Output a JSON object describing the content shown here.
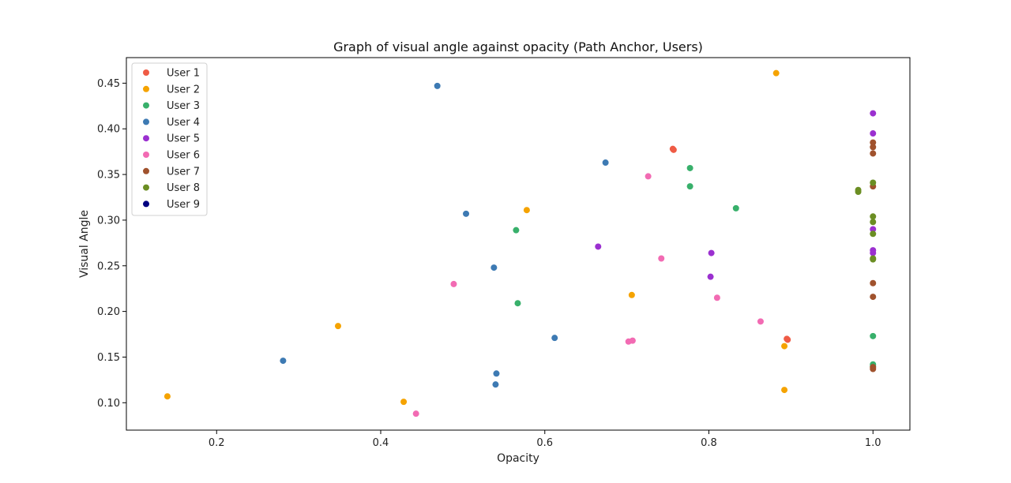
{
  "chart_data": {
    "type": "scatter",
    "title": "Graph of visual angle against opacity (Path Anchor, Users)",
    "xlabel": "Opacity",
    "ylabel": "Visual Angle",
    "xlim": [
      0.09,
      1.045
    ],
    "ylim": [
      0.07,
      0.478
    ],
    "xticks": [
      0.2,
      0.4,
      0.6,
      0.8,
      1.0
    ],
    "xtick_labels": [
      "0.2",
      "0.4",
      "0.6",
      "0.8",
      "1.0"
    ],
    "yticks": [
      0.1,
      0.15,
      0.2,
      0.25,
      0.3,
      0.35,
      0.4,
      0.45
    ],
    "ytick_labels": [
      "0.10",
      "0.15",
      "0.20",
      "0.25",
      "0.30",
      "0.35",
      "0.40",
      "0.45"
    ],
    "grid": false,
    "legend_position": "top-left",
    "series": [
      {
        "name": "User 1",
        "color": "#ef5b45",
        "points": [
          [
            0.756,
            0.378
          ],
          [
            0.757,
            0.377
          ],
          [
            0.895,
            0.17
          ],
          [
            0.896,
            0.169
          ]
        ]
      },
      {
        "name": "User 2",
        "color": "#f5a300",
        "points": [
          [
            0.882,
            0.461
          ],
          [
            0.578,
            0.311
          ],
          [
            0.706,
            0.218
          ],
          [
            0.348,
            0.184
          ],
          [
            0.892,
            0.162
          ],
          [
            0.14,
            0.107
          ],
          [
            0.428,
            0.101
          ],
          [
            0.892,
            0.114
          ]
        ]
      },
      {
        "name": "User 3",
        "color": "#38b06b",
        "points": [
          [
            0.777,
            0.357
          ],
          [
            0.777,
            0.337
          ],
          [
            0.833,
            0.313
          ],
          [
            0.565,
            0.289
          ],
          [
            0.567,
            0.209
          ],
          [
            1.0,
            0.173
          ],
          [
            1.0,
            0.142
          ],
          [
            1.0,
            0.14
          ]
        ]
      },
      {
        "name": "User 4",
        "color": "#3d7ab3",
        "points": [
          [
            0.469,
            0.447
          ],
          [
            0.674,
            0.363
          ],
          [
            0.504,
            0.307
          ],
          [
            0.538,
            0.248
          ],
          [
            0.612,
            0.171
          ],
          [
            0.281,
            0.146
          ],
          [
            0.541,
            0.132
          ],
          [
            0.54,
            0.12
          ]
        ]
      },
      {
        "name": "User 5",
        "color": "#9b30d0",
        "points": [
          [
            1.0,
            0.417
          ],
          [
            1.0,
            0.395
          ],
          [
            1.0,
            0.29
          ],
          [
            0.665,
            0.271
          ],
          [
            0.803,
            0.264
          ],
          [
            1.0,
            0.267
          ],
          [
            1.0,
            0.264
          ],
          [
            0.802,
            0.238
          ]
        ]
      },
      {
        "name": "User 6",
        "color": "#f26bb3",
        "points": [
          [
            0.726,
            0.348
          ],
          [
            0.742,
            0.258
          ],
          [
            0.489,
            0.23
          ],
          [
            0.81,
            0.215
          ],
          [
            0.863,
            0.189
          ],
          [
            0.702,
            0.167
          ],
          [
            0.707,
            0.168
          ],
          [
            0.443,
            0.088
          ]
        ]
      },
      {
        "name": "User 7",
        "color": "#a0522d",
        "points": [
          [
            1.0,
            0.385
          ],
          [
            1.0,
            0.38
          ],
          [
            1.0,
            0.373
          ],
          [
            1.0,
            0.337
          ],
          [
            1.0,
            0.231
          ],
          [
            1.0,
            0.216
          ],
          [
            1.0,
            0.139
          ],
          [
            1.0,
            0.137
          ]
        ]
      },
      {
        "name": "User 8",
        "color": "#6b8e23",
        "points": [
          [
            0.982,
            0.333
          ],
          [
            0.982,
            0.331
          ],
          [
            1.0,
            0.341
          ],
          [
            1.0,
            0.304
          ],
          [
            1.0,
            0.298
          ],
          [
            1.0,
            0.285
          ],
          [
            1.0,
            0.258
          ],
          [
            1.0,
            0.257
          ]
        ]
      },
      {
        "name": "User 9",
        "color": "#000080",
        "points": []
      }
    ]
  }
}
